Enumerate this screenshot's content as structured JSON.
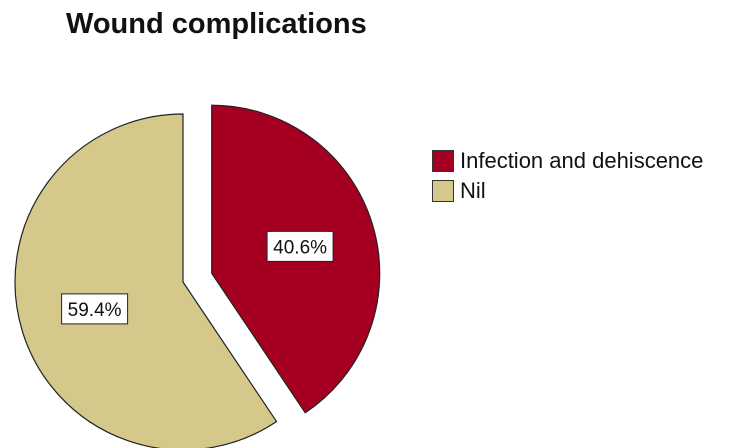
{
  "chart_data": {
    "type": "pie",
    "title": "Wound complications",
    "slices": [
      {
        "name": "Infection and dehiscence",
        "value": 40.6,
        "label": "40.6%",
        "color": "#A50021",
        "exploded": true
      },
      {
        "name": "Nil",
        "value": 59.4,
        "label": "59.4%",
        "color": "#D4C98A",
        "exploded": false
      }
    ],
    "legend_position": "right",
    "start_angle_deg": 0,
    "direction": "clockwise"
  }
}
